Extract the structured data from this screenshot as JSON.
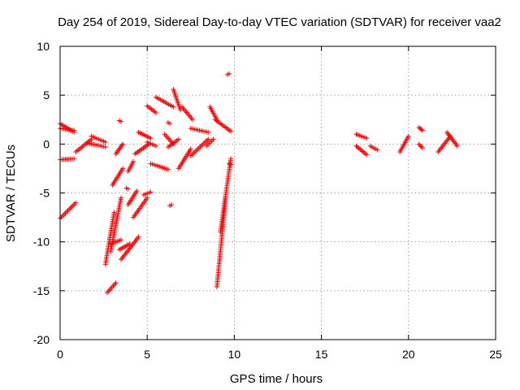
{
  "chart_data": {
    "type": "scatter",
    "title": "Day 254 of 2019, Sidereal Day-to-day VTEC variation (SDTVAR) for receiver vaa2",
    "xlabel": "GPS time / hours",
    "ylabel": "SDTVAR / TECUs",
    "xlim": [
      0,
      25
    ],
    "ylim": [
      -20,
      10
    ],
    "x_ticks": [
      0,
      5,
      10,
      15,
      20,
      25
    ],
    "y_ticks": [
      -20,
      -15,
      -10,
      -5,
      0,
      5,
      10
    ],
    "x_tick_labels": [
      "0",
      "5",
      "10",
      "15",
      "20",
      "25"
    ],
    "y_tick_labels": [
      "-20",
      "-15",
      "-10",
      "-5",
      "0",
      "5",
      "10"
    ],
    "grid": true,
    "marker": "+",
    "color": "#ff0000",
    "series": [
      {
        "name": "vaa2",
        "segments": [
          {
            "x": [
              0.0,
              0.8
            ],
            "y": [
              1.6,
              1.4
            ]
          },
          {
            "x": [
              0.0,
              0.8
            ],
            "y": [
              2.1,
              1.2
            ]
          },
          {
            "x": [
              0.0,
              0.8
            ],
            "y": [
              -1.6,
              -1.5
            ]
          },
          {
            "x": [
              0.0,
              0.9
            ],
            "y": [
              -7.6,
              -6.0
            ]
          },
          {
            "x": [
              0.9,
              1.8
            ],
            "y": [
              -0.8,
              0.5
            ]
          },
          {
            "x": [
              1.8,
              2.6
            ],
            "y": [
              0.8,
              0.2
            ]
          },
          {
            "x": [
              1.6,
              2.6
            ],
            "y": [
              0.1,
              -0.3
            ]
          },
          {
            "x": [
              2.6,
              3.1
            ],
            "y": [
              -12.3,
              -7.0
            ]
          },
          {
            "x": [
              2.7,
              3.2
            ],
            "y": [
              -15.2,
              -14.2
            ]
          },
          {
            "x": [
              2.9,
              3.5
            ],
            "y": [
              -11.0,
              -5.5
            ]
          },
          {
            "x": [
              2.9,
              3.5
            ],
            "y": [
              -10.2,
              -9.8
            ]
          },
          {
            "x": [
              3.0,
              3.6
            ],
            "y": [
              -4.2,
              -2.5
            ]
          },
          {
            "x": [
              3.4,
              4.0
            ],
            "y": [
              -10.8,
              -10.2
            ]
          },
          {
            "x": [
              3.5,
              4.5
            ],
            "y": [
              -11.8,
              -9.5
            ]
          },
          {
            "x": [
              3.2,
              3.6
            ],
            "y": [
              -1.0,
              0.0
            ]
          },
          {
            "x": [
              3.9,
              4.2
            ],
            "y": [
              -2.8,
              -1.8
            ]
          },
          {
            "x": [
              3.9,
              4.4
            ],
            "y": [
              -6.2,
              -4.8
            ]
          },
          {
            "x": [
              4.3,
              5.1
            ],
            "y": [
              -1.0,
              0.0
            ]
          },
          {
            "x": [
              4.5,
              5.2
            ],
            "y": [
              1.2,
              0.6
            ]
          },
          {
            "x": [
              4.2,
              5.0
            ],
            "y": [
              -7.5,
              -5.5
            ]
          },
          {
            "x": [
              4.8,
              5.2
            ],
            "y": [
              -5.2,
              -4.9
            ]
          },
          {
            "x": [
              5.0,
              5.5
            ],
            "y": [
              3.9,
              3.2
            ]
          },
          {
            "x": [
              5.0,
              5.5
            ],
            "y": [
              0.2,
              -0.2
            ]
          },
          {
            "x": [
              5.2,
              6.2
            ],
            "y": [
              -2.0,
              -2.6
            ]
          },
          {
            "x": [
              5.5,
              6.5
            ],
            "y": [
              4.8,
              3.8
            ]
          },
          {
            "x": [
              6.0,
              6.5
            ],
            "y": [
              1.0,
              0.0
            ]
          },
          {
            "x": [
              6.2,
              6.8
            ],
            "y": [
              -0.3,
              0.5
            ]
          },
          {
            "x": [
              6.5,
              6.9
            ],
            "y": [
              5.6,
              3.5
            ]
          },
          {
            "x": [
              6.8,
              7.5
            ],
            "y": [
              -2.5,
              -0.5
            ]
          },
          {
            "x": [
              7.0,
              7.6
            ],
            "y": [
              3.8,
              2.5
            ]
          },
          {
            "x": [
              7.5,
              8.5
            ],
            "y": [
              -1.2,
              0.5
            ]
          },
          {
            "x": [
              7.5,
              8.5
            ],
            "y": [
              1.6,
              1.2
            ]
          },
          {
            "x": [
              8.4,
              8.8
            ],
            "y": [
              -0.2,
              0.5
            ]
          },
          {
            "x": [
              8.6,
              9.0
            ],
            "y": [
              3.8,
              2.5
            ]
          },
          {
            "x": [
              8.9,
              9.8
            ],
            "y": [
              2.5,
              1.3
            ]
          },
          {
            "x": [
              9.0,
              9.5
            ],
            "y": [
              -14.6,
              -5.5
            ]
          },
          {
            "x": [
              9.2,
              9.8
            ],
            "y": [
              -9.0,
              -1.5
            ]
          },
          {
            "x": [
              9.6,
              9.7
            ],
            "y": [
              7.1,
              7.2
            ]
          },
          {
            "x": [
              9.7,
              9.8
            ],
            "y": [
              -2.0,
              -2.1
            ]
          },
          {
            "x": [
              3.4,
              3.5
            ],
            "y": [
              2.4,
              2.3
            ]
          },
          {
            "x": [
              3.8,
              3.9
            ],
            "y": [
              -4.5,
              -4.6
            ]
          },
          {
            "x": [
              6.3,
              6.4
            ],
            "y": [
              -6.3,
              -6.2
            ]
          },
          {
            "x": [
              6.2,
              6.3
            ],
            "y": [
              2.2,
              2.1
            ]
          },
          {
            "x": [
              17.0,
              17.6
            ],
            "y": [
              1.0,
              0.6
            ]
          },
          {
            "x": [
              17.0,
              17.6
            ],
            "y": [
              -0.2,
              -1.1
            ]
          },
          {
            "x": [
              17.8,
              18.2
            ],
            "y": [
              -0.2,
              -0.6
            ]
          },
          {
            "x": [
              19.5,
              20.0
            ],
            "y": [
              -0.8,
              0.8
            ]
          },
          {
            "x": [
              20.6,
              20.8
            ],
            "y": [
              0.0,
              -0.4
            ]
          },
          {
            "x": [
              20.6,
              20.8
            ],
            "y": [
              1.7,
              1.4
            ]
          },
          {
            "x": [
              21.7,
              22.4
            ],
            "y": [
              -0.8,
              0.8
            ]
          },
          {
            "x": [
              22.2,
              22.8
            ],
            "y": [
              1.2,
              -0.2
            ]
          }
        ]
      }
    ]
  }
}
